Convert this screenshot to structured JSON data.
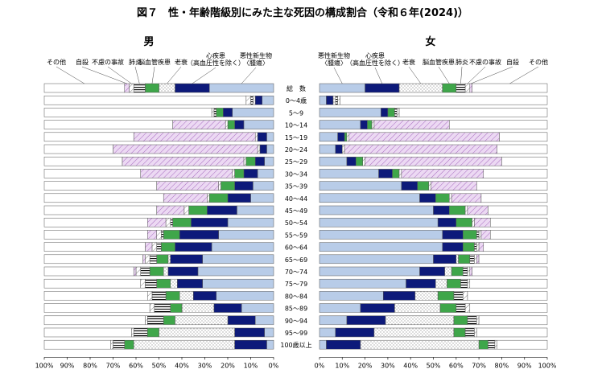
{
  "title": "図７　性・年齢階級別にみた主な死因の構成割合（令和６年(2024)）",
  "male_label": "男",
  "female_label": "女",
  "colors": {
    "neoplasm": "#b8cce8",
    "heart": "#0d1a7a",
    "senility_bg": "#ffffff",
    "cerebro": "#3fa64a",
    "pneumonia_bg": "#ffffff",
    "accident_bg": "#ffffff",
    "suicide": "#e6d4f0",
    "other": "#ffffff",
    "outline": "#555555"
  },
  "chart_data": [
    {
      "type": "bar",
      "title": "男",
      "orientation": "horizontal-stacked",
      "direction": "right-to-left",
      "xlabel": "",
      "ylabel": "",
      "xlim": [
        0,
        100
      ],
      "xticks": [
        "100%",
        "90%",
        "80%",
        "70%",
        "60%",
        "50%",
        "40%",
        "30%",
        "20%",
        "10%",
        "0%"
      ],
      "categories": [
        "総　数",
        "0～4歳",
        "5～9",
        "10～14",
        "15～19",
        "20～24",
        "25～29",
        "30～34",
        "35～39",
        "40～44",
        "45～49",
        "50～54",
        "55～59",
        "60～64",
        "65～69",
        "70～74",
        "75～79",
        "80～84",
        "85～89",
        "90～94",
        "95～99",
        "100歳以上"
      ],
      "series": [
        {
          "name": "悪性新生物〈腫瘍〉",
          "values": [
            28,
            5,
            18,
            13,
            3,
            3,
            4,
            7,
            9,
            10,
            16,
            20,
            24,
            27,
            31,
            33,
            31,
            25,
            14,
            8,
            4,
            3
          ]
        },
        {
          "name": "心疾患（高血圧性を除く）",
          "values": [
            15,
            3,
            4,
            4,
            4,
            3,
            4,
            6,
            8,
            10,
            13,
            16,
            17,
            16,
            14,
            13,
            11,
            10,
            12,
            12,
            13,
            14
          ]
        },
        {
          "name": "老衰",
          "values": [
            7,
            1,
            0,
            0,
            0,
            0,
            0,
            0,
            0,
            0,
            0,
            0,
            0,
            0,
            1,
            2,
            3,
            6,
            14,
            23,
            33,
            44
          ]
        },
        {
          "name": "脳血管疾患",
          "values": [
            6,
            0,
            3,
            3,
            0,
            0,
            4,
            4,
            6,
            8,
            8,
            8,
            7,
            6,
            5,
            6,
            6,
            6,
            5,
            5,
            5,
            4
          ]
        },
        {
          "name": "肺炎",
          "values": [
            5,
            1,
            1,
            0,
            0,
            0,
            0,
            0,
            0,
            0,
            0,
            1,
            1,
            2,
            3,
            4,
            5,
            6,
            7,
            7,
            6,
            5
          ]
        },
        {
          "name": "不慮の事故",
          "values": [
            2,
            2,
            1,
            1,
            1,
            1,
            1,
            1,
            1,
            1,
            2,
            2,
            2,
            2,
            2,
            2,
            2,
            2,
            2,
            1,
            1,
            1
          ]
        },
        {
          "name": "自殺",
          "values": [
            2,
            0,
            0,
            23,
            53,
            63,
            53,
            40,
            27,
            19,
            12,
            8,
            4,
            3,
            1,
            1,
            0,
            0,
            0,
            0,
            0,
            0
          ]
        },
        {
          "name": "その他",
          "values": [
            35,
            88,
            73,
            56,
            39,
            30,
            34,
            42,
            49,
            52,
            49,
            45,
            45,
            44,
            43,
            39,
            42,
            45,
            46,
            44,
            38,
            29
          ]
        }
      ]
    },
    {
      "type": "bar",
      "title": "女",
      "orientation": "horizontal-stacked",
      "direction": "left-to-right",
      "xlabel": "",
      "ylabel": "",
      "xlim": [
        0,
        100
      ],
      "xticks": [
        "0%",
        "10%",
        "20%",
        "30%",
        "40%",
        "50%",
        "60%",
        "70%",
        "80%",
        "90%",
        "100%"
      ],
      "categories": [
        "総　数",
        "0～4歳",
        "5～9",
        "10～14",
        "15～19",
        "20～24",
        "25～29",
        "30～34",
        "35～39",
        "40～44",
        "45～49",
        "50～54",
        "55～59",
        "60～64",
        "65～69",
        "70～74",
        "75～79",
        "80～84",
        "85～89",
        "90～94",
        "95～99",
        "100歳以上"
      ],
      "series": [
        {
          "name": "悪性新生物〈腫瘍〉",
          "values": [
            20,
            3,
            27,
            18,
            8,
            7,
            12,
            26,
            36,
            44,
            50,
            52,
            54,
            54,
            50,
            44,
            38,
            28,
            18,
            12,
            7,
            3
          ]
        },
        {
          "name": "心疾患（高血圧性を除く）",
          "values": [
            15,
            3,
            3,
            3,
            3,
            3,
            4,
            6,
            7,
            7,
            7,
            8,
            9,
            9,
            10,
            11,
            13,
            14,
            15,
            17,
            17,
            15
          ]
        },
        {
          "name": "老衰",
          "values": [
            19,
            1,
            0,
            0,
            0,
            0,
            0,
            0,
            0,
            0,
            0,
            0,
            0,
            0,
            1,
            3,
            5,
            10,
            20,
            30,
            35,
            52
          ]
        },
        {
          "name": "脳血管疾患",
          "values": [
            6,
            0,
            3,
            2,
            1,
            0,
            3,
            3,
            5,
            6,
            7,
            7,
            6,
            5,
            5,
            5,
            6,
            7,
            7,
            6,
            5,
            4
          ]
        },
        {
          "name": "肺炎",
          "values": [
            4,
            1,
            1,
            0,
            0,
            0,
            0,
            0,
            0,
            0,
            0,
            0,
            1,
            1,
            2,
            2,
            3,
            4,
            4,
            4,
            4,
            3
          ]
        },
        {
          "name": "不慮の事故",
          "values": [
            2,
            1,
            1,
            1,
            1,
            1,
            1,
            1,
            1,
            1,
            1,
            1,
            1,
            1,
            1,
            1,
            1,
            2,
            2,
            1,
            1,
            1
          ]
        },
        {
          "name": "自殺",
          "values": [
            1,
            0,
            0,
            33,
            66,
            67,
            60,
            36,
            20,
            13,
            9,
            7,
            4,
            2,
            1,
            1,
            0,
            0,
            0,
            0,
            0,
            0
          ]
        },
        {
          "name": "その他",
          "values": [
            33,
            91,
            65,
            43,
            21,
            22,
            20,
            28,
            31,
            29,
            26,
            25,
            25,
            28,
            30,
            33,
            34,
            35,
            34,
            30,
            31,
            22
          ]
        }
      ]
    }
  ]
}
